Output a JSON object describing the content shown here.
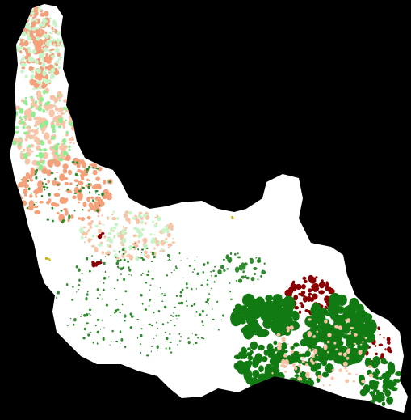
{
  "map": {
    "background_color": "#000000",
    "land_color": "#ffffff",
    "classes": [
      {
        "name": "dense-vegetation",
        "color": "#127a12"
      },
      {
        "name": "sparse-vegetation",
        "color": "#2e8b2e"
      },
      {
        "name": "light-vegetation",
        "color": "#90ee90"
      },
      {
        "name": "pale-green",
        "color": "#c8f5c8"
      },
      {
        "name": "salmon",
        "color": "#f4a07a"
      },
      {
        "name": "light-salmon",
        "color": "#f8c4a8"
      },
      {
        "name": "dark-red",
        "color": "#8b0000"
      },
      {
        "name": "yellow-ochre",
        "color": "#c8b400"
      }
    ]
  }
}
